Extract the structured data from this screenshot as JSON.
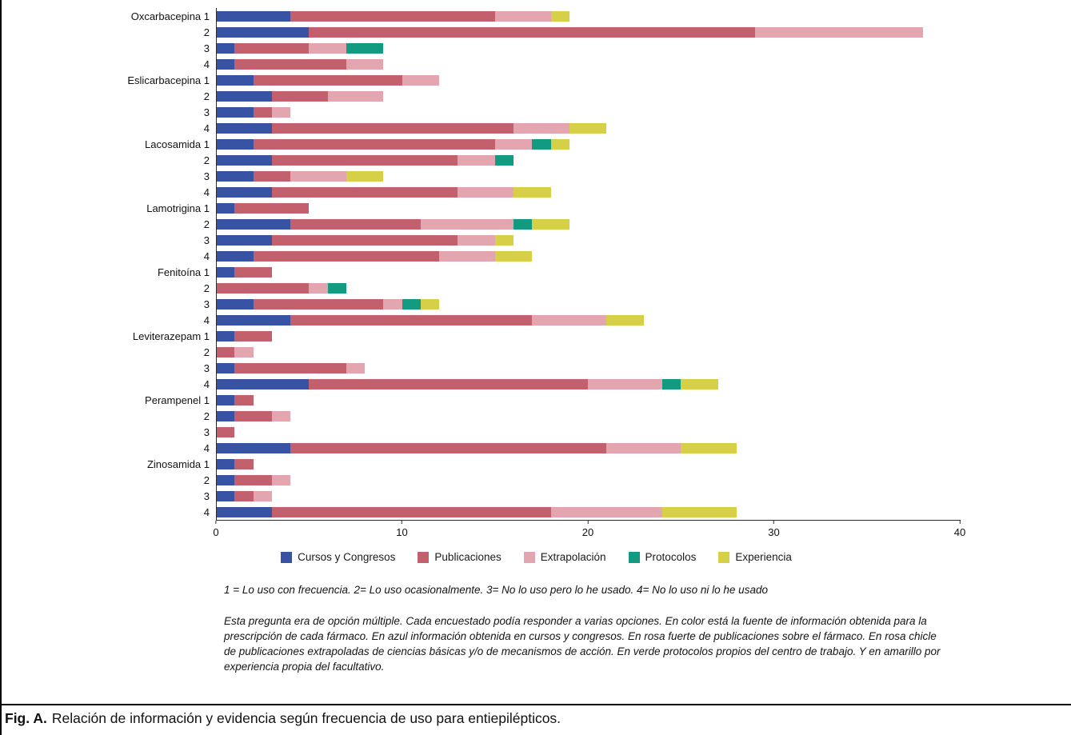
{
  "chart_data": {
    "type": "bar",
    "subtype": "horizontal-stacked",
    "title": "",
    "xlabel": "",
    "ylabel": "",
    "x_axis": {
      "min": 0,
      "max": 40,
      "ticks": [
        0,
        10,
        20,
        30,
        40
      ]
    },
    "legend_position": "bottom",
    "legend": [
      {
        "label": "Cursos y Congresos",
        "color": "#3853a3"
      },
      {
        "label": "Publicaciones",
        "color": "#c2616d"
      },
      {
        "label": "Extrapolación",
        "color": "#e3a6b1"
      },
      {
        "label": "Protocolos",
        "color": "#129b80"
      },
      {
        "label": "Experiencia",
        "color": "#d6d049"
      }
    ],
    "groups": [
      {
        "name": "Oxcarbacepina",
        "rows": [
          {
            "label": "1",
            "values": [
              4,
              11,
              3,
              0,
              1
            ]
          },
          {
            "label": "2",
            "values": [
              5,
              24,
              9,
              0,
              0
            ]
          },
          {
            "label": "3",
            "values": [
              1,
              4,
              2,
              2,
              0
            ]
          },
          {
            "label": "4",
            "values": [
              1,
              6,
              2,
              0,
              0
            ]
          }
        ]
      },
      {
        "name": "Eslicarbacepina",
        "rows": [
          {
            "label": "1",
            "values": [
              2,
              8,
              2,
              0,
              0
            ]
          },
          {
            "label": "2",
            "values": [
              3,
              3,
              3,
              0,
              0
            ]
          },
          {
            "label": "3",
            "values": [
              2,
              1,
              1,
              0,
              0
            ]
          },
          {
            "label": "4",
            "values": [
              3,
              13,
              3,
              0,
              2
            ]
          }
        ]
      },
      {
        "name": "Lacosamida",
        "rows": [
          {
            "label": "1",
            "values": [
              2,
              13,
              2,
              1,
              1
            ]
          },
          {
            "label": "2",
            "values": [
              3,
              10,
              2,
              1,
              0
            ]
          },
          {
            "label": "3",
            "values": [
              2,
              2,
              3,
              0,
              2
            ]
          },
          {
            "label": "4",
            "values": [
              3,
              10,
              3,
              0,
              2
            ]
          }
        ]
      },
      {
        "name": "Lamotrigina",
        "rows": [
          {
            "label": "1",
            "values": [
              1,
              4,
              0,
              0,
              0
            ]
          },
          {
            "label": "2",
            "values": [
              4,
              7,
              5,
              1,
              2
            ]
          },
          {
            "label": "3",
            "values": [
              3,
              10,
              2,
              0,
              1
            ]
          },
          {
            "label": "4",
            "values": [
              2,
              10,
              3,
              0,
              2
            ]
          }
        ]
      },
      {
        "name": "Fenitoína",
        "rows": [
          {
            "label": "1",
            "values": [
              1,
              2,
              0,
              0,
              0
            ]
          },
          {
            "label": "2",
            "values": [
              0,
              5,
              1,
              1,
              0
            ]
          },
          {
            "label": "3",
            "values": [
              2,
              7,
              1,
              1,
              1
            ]
          },
          {
            "label": "4",
            "values": [
              4,
              13,
              4,
              0,
              2
            ]
          }
        ]
      },
      {
        "name": "Leviterazepam",
        "rows": [
          {
            "label": "1",
            "values": [
              1,
              2,
              0,
              0,
              0
            ]
          },
          {
            "label": "2",
            "values": [
              0,
              1,
              1,
              0,
              0
            ]
          },
          {
            "label": "3",
            "values": [
              1,
              6,
              1,
              0,
              0
            ]
          },
          {
            "label": "4",
            "values": [
              5,
              15,
              4,
              1,
              2
            ]
          }
        ]
      },
      {
        "name": "Perampenel",
        "rows": [
          {
            "label": "1",
            "values": [
              1,
              1,
              0,
              0,
              0
            ]
          },
          {
            "label": "2",
            "values": [
              1,
              2,
              1,
              0,
              0
            ]
          },
          {
            "label": "3",
            "values": [
              0,
              1,
              0,
              0,
              0
            ]
          },
          {
            "label": "4",
            "values": [
              4,
              17,
              4,
              0,
              3
            ]
          }
        ]
      },
      {
        "name": "Zinosamida",
        "rows": [
          {
            "label": "1",
            "values": [
              1,
              1,
              0,
              0,
              0
            ]
          },
          {
            "label": "2",
            "values": [
              1,
              2,
              1,
              0,
              0
            ]
          },
          {
            "label": "3",
            "values": [
              1,
              1,
              1,
              0,
              0
            ]
          },
          {
            "label": "4",
            "values": [
              3,
              15,
              6,
              0,
              4
            ]
          }
        ]
      }
    ]
  },
  "footnotes": {
    "scale_key": "1 = Lo uso con frecuencia. 2= Lo uso ocasionalmente. 3= No lo uso pero lo he usado. 4= No lo uso ni lo he usado",
    "description": "Esta pregunta era de opción múltiple. Cada encuestado podía responder a varias opciones. En color está la fuente de información obtenida para la prescripción de cada fármaco. En azul información obtenida en cursos y congresos. En rosa fuerte de publicaciones sobre el fármaco. En rosa chicle de publicaciones extrapoladas de ciencias básicas y/o de mecanismos de acción. En verde protocolos propios del centro de trabajo. Y en amarillo por experiencia propia del facultativo."
  },
  "caption": {
    "label": "Fig. A.",
    "text": "Relación de información y evidencia según frecuencia de uso para entiepilépticos."
  }
}
